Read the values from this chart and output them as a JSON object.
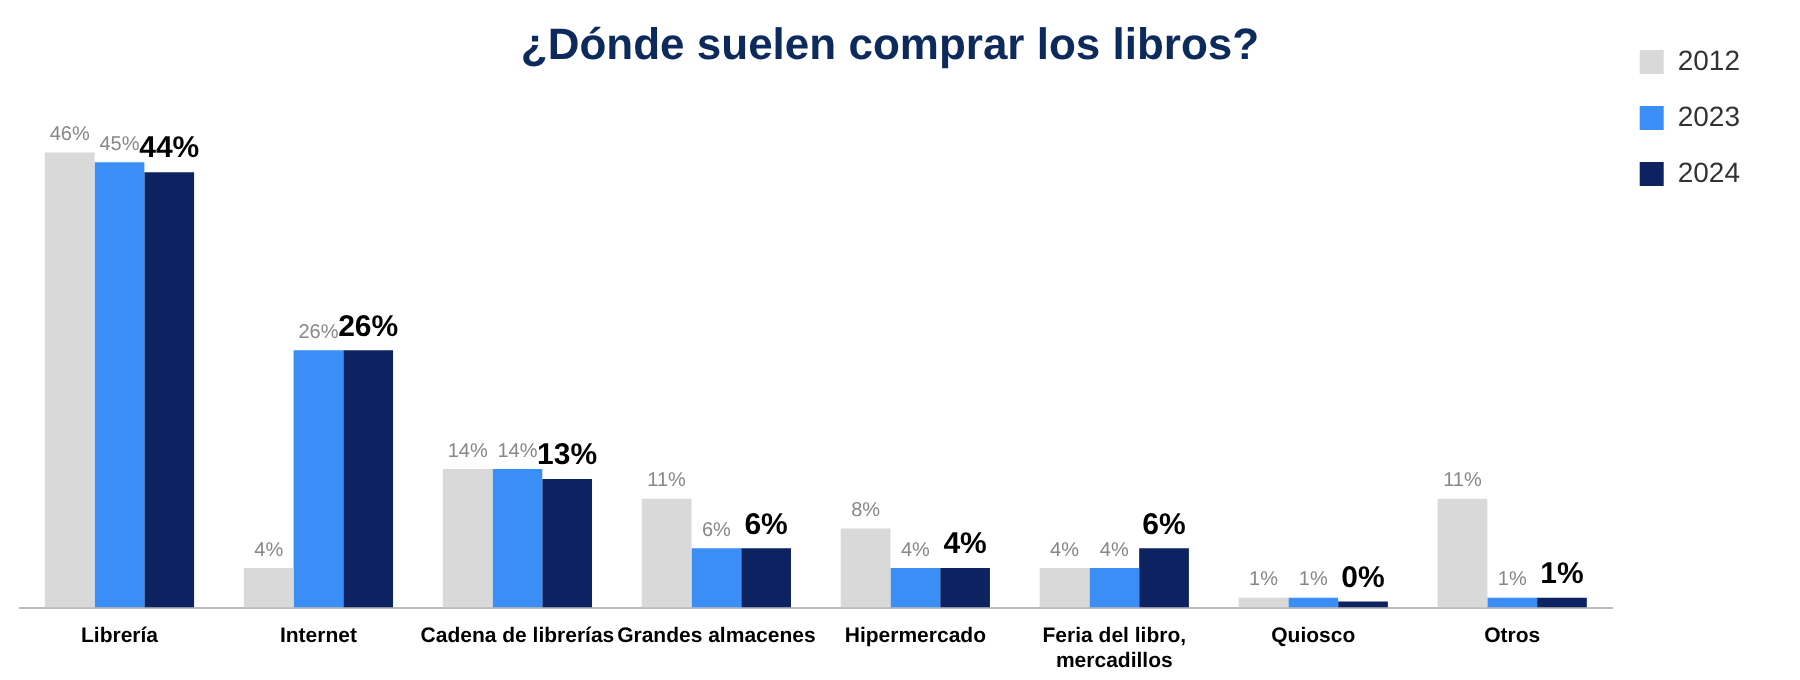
{
  "chart_data": {
    "type": "bar",
    "title": "¿Dónde suelen comprar los libros?",
    "categories": [
      "Librería",
      "Internet",
      "Cadena de librerías",
      "Grandes almacenes",
      "Hipermercado",
      "Feria del libro, mercadillos",
      "Quiosco",
      "Otros"
    ],
    "series": [
      {
        "name": "2012",
        "color": "#d9d9d9",
        "values": [
          46,
          4,
          14,
          11,
          8,
          4,
          1,
          11
        ],
        "value_labels": [
          "46%",
          "4%",
          "14%",
          "11%",
          "8%",
          "4%",
          "1%",
          "11%"
        ]
      },
      {
        "name": "2023",
        "color": "#3a8ef5",
        "values": [
          45,
          26,
          14,
          6,
          4,
          4,
          1,
          1
        ],
        "value_labels": [
          "45%",
          "26%",
          "14%",
          "6%",
          "4%",
          "4%",
          "1%",
          "1%"
        ]
      },
      {
        "name": "2024",
        "color": "#0d2260",
        "values": [
          44,
          26,
          13,
          6,
          4,
          6,
          0,
          1
        ],
        "value_labels": [
          "44%",
          "26%",
          "13%",
          "6%",
          "4%",
          "6%",
          "0%",
          "1%"
        ]
      }
    ],
    "legend": "top right",
    "grid": false,
    "tick_labels": "x"
  }
}
